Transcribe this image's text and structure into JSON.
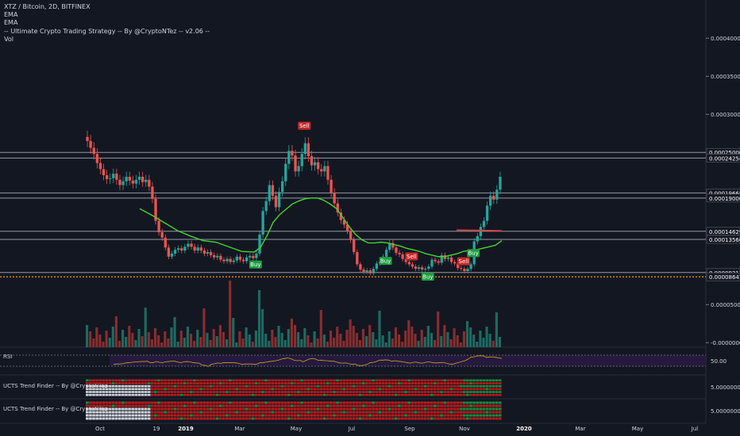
{
  "legend": {
    "symbol": "XTZ / Bitcoin, 2D, BITFINEX",
    "ema1": "EMA",
    "ema2": "EMA",
    "strategy": "-- Ultimate Crypto Trading Strategy -- By @CryptoNTez -- v2.06 --",
    "vol": "Vol"
  },
  "panes": {
    "rsi_title": "RSI",
    "trend1_title": "UCTS Trend Finder -- By @CryptoNTez",
    "trend2_title": "UCTS Trend Finder -- By @CryptoNTez"
  },
  "colors": {
    "background": "#131722",
    "up": "#26a69a",
    "down": "#ef5350",
    "ema": "#44d62c",
    "horizontal_lines": "#9598a1",
    "support_line": "#ff9800",
    "resistance_segment": "#e53935",
    "rsi_line": "#d4a21c",
    "rsi_band": "#2e1d4a",
    "trend_red": "#b71c1c",
    "trend_green": "#1b8a3a"
  },
  "chart_data": {
    "type": "candlestick",
    "title": "XTZ / Bitcoin, 2D, BITFINEX",
    "x_ticks": [
      "Oct",
      "19",
      "2019",
      "Mar",
      "May",
      "Jul",
      "Sep",
      "Nov",
      "2020",
      "Mar",
      "May",
      "Jul"
    ],
    "y_ticks": [
      "0.00040000",
      "0.00035000",
      "0.00030000",
      "0.00005000",
      "-0.00000000"
    ],
    "y_range": [
      -6e-06,
      0.000445
    ],
    "scale": "linear",
    "price_labels": [
      "0.00025000",
      "0.00024254",
      "0.00019668",
      "0.00019000",
      "0.00014629",
      "0.00013560",
      "0.00009211",
      "0.00008647"
    ],
    "horizontal_levels": [
      0.00025,
      0.00024254,
      0.00019668,
      0.00019,
      0.00014629,
      0.0001356,
      9.211e-05
    ],
    "support_level": 8.647e-05,
    "close_prices": [
      0.000265,
      0.000256,
      0.000248,
      0.000236,
      0.000228,
      0.00022,
      0.000215,
      0.000216,
      0.000222,
      0.000214,
      0.000207,
      0.000212,
      0.000218,
      0.000213,
      0.000209,
      0.000214,
      0.000218,
      0.000211,
      0.000214,
      0.000205,
      0.000189,
      0.00016,
      0.000145,
      0.000138,
      0.000125,
      0.000113,
      0.000117,
      0.000122,
      0.000124,
      0.000121,
      0.000126,
      0.00013,
      0.000126,
      0.000121,
      0.000125,
      0.000121,
      0.000117,
      0.000119,
      0.000115,
      0.000112,
      0.000114,
      0.000109,
      0.000107,
      0.00011,
      0.000106,
      0.000108,
      0.000113,
      0.000109,
      0.000107,
      0.000112,
      0.000114,
      0.000111,
      0.000117,
      0.000142,
      0.000173,
      0.000186,
      0.000207,
      0.000193,
      0.000178,
      0.000198,
      0.000212,
      0.000235,
      0.000252,
      0.000246,
      0.000225,
      0.000232,
      0.000248,
      0.000262,
      0.000245,
      0.000233,
      0.000237,
      0.000228,
      0.000225,
      0.000232,
      0.000214,
      0.000197,
      0.000183,
      0.000171,
      0.000161,
      0.000155,
      0.000147,
      0.000135,
      0.000119,
      0.000103,
      9.6e-05,
      9.3e-05,
      9.5e-05,
      9.1e-05,
      9.7e-05,
      0.000104,
      0.000106,
      0.000113,
      0.000122,
      0.000131,
      0.000125,
      0.000118,
      0.000116,
      0.00011,
      0.000106,
      0.000103,
      0.0001,
      9.7e-05,
      9.9e-05,
      9.6e-05,
      9.7e-05,
      0.0001,
      0.000109,
      0.000107,
      0.000105,
      0.000115,
      0.00011,
      0.000112,
      0.000106,
      0.000104,
      9.8e-05,
      9.7e-05,
      9.4e-05,
      9.7e-05,
      0.000103,
      0.000133,
      0.00014,
      0.000152,
      0.00016,
      0.00018,
      0.000193,
      0.000188,
      0.000201,
      0.000218
    ],
    "volume_max": 5.5e-05,
    "ema_slow_points": [
      [
        0.000175,
        0.000176
      ],
      [
        0.000191,
        0.000167
      ],
      [
        0.000207,
        0.000157
      ],
      [
        0.000223,
        0.000147
      ],
      [
        0.000239,
        0.00014
      ],
      [
        0.000255,
        0.000134
      ],
      [
        0.000271,
        0.000132
      ],
      [
        0.000287,
        0.000126
      ],
      [
        0.000303,
        0.00012
      ],
      [
        0.000319,
        0.000119
      ],
      [
        0.000327,
        0.000125
      ],
      [
        0.000335,
        0.00014
      ],
      [
        0.000343,
        0.000158
      ],
      [
        0.000351,
        0.000168
      ],
      [
        0.000359,
        0.000175
      ],
      [
        0.000367,
        0.000182
      ],
      [
        0.000375,
        0.000186
      ],
      [
        0.000383,
        0.000189
      ],
      [
        0.000391,
        0.00019
      ],
      [
        0.000399,
        0.00019
      ],
      [
        0.000407,
        0.000187
      ],
      [
        0.000415,
        0.000182
      ],
      [
        0.000423,
        0.000176
      ],
      [
        0.000431,
        0.000164
      ],
      [
        0.000439,
        0.000152
      ],
      [
        0.000447,
        0.000142
      ],
      [
        0.000455,
        0.000135
      ],
      [
        0.000463,
        0.000131
      ],
      [
        0.000471,
        0.000131
      ],
      [
        0.000479,
        0.000132
      ],
      [
        0.000487,
        0.000131
      ],
      [
        0.000495,
        0.000129
      ],
      [
        0.000503,
        0.000127
      ],
      [
        0.000511,
        0.000124
      ],
      [
        0.000519,
        0.000122
      ],
      [
        0.000527,
        0.00012
      ],
      [
        0.000535,
        0.000117
      ],
      [
        0.000543,
        0.000115
      ],
      [
        0.000551,
        0.000113
      ],
      [
        0.000559,
        0.000113
      ],
      [
        0.000567,
        0.000115
      ],
      [
        0.000575,
        0.000117
      ],
      [
        0.000583,
        0.00012
      ],
      [
        0.000591,
        0.000121
      ],
      [
        0.000599,
        0.000122
      ],
      [
        0.000607,
        0.000124
      ],
      [
        0.000615,
        0.000126
      ],
      [
        0.000623,
        0.000128
      ],
      [
        0.000631,
        0.000134
      ]
    ],
    "resistance_segment": [
      [
        0.000574,
        0.000148
      ],
      [
        0.000631,
        0.000147
      ]
    ],
    "signals": [
      {
        "label": "Buy",
        "bar": 52,
        "type": "buy"
      },
      {
        "label": "Sell",
        "bar": 67,
        "type": "sell"
      },
      {
        "label": "Buy",
        "bar": 92,
        "type": "buy"
      },
      {
        "label": "Sell",
        "bar": 100,
        "type": "sell"
      },
      {
        "label": "Buy",
        "bar": 105,
        "type": "buy"
      },
      {
        "label": "Sell",
        "bar": 116,
        "type": "sell"
      },
      {
        "label": "Buy",
        "bar": 119,
        "type": "buy"
      }
    ],
    "rsi": {
      "axis_label": "50.00",
      "upper": 70,
      "lower": 30,
      "values": [
        37,
        38,
        38,
        39,
        42,
        43,
        44,
        46,
        46,
        47,
        47,
        48,
        43,
        43,
        47,
        44,
        43,
        46,
        47,
        48,
        48,
        45,
        43,
        46,
        47,
        46,
        43,
        42,
        41,
        34,
        33,
        29,
        37,
        39,
        42,
        40,
        43,
        43,
        43,
        43,
        42,
        40,
        37,
        38,
        38,
        38,
        37,
        38,
        43,
        43,
        45,
        47,
        48,
        50,
        52,
        56,
        58,
        60,
        57,
        52,
        50,
        51,
        46,
        51,
        56,
        58,
        56,
        51,
        52,
        50,
        50,
        48,
        48,
        45,
        42,
        41,
        42,
        39,
        37,
        38,
        33,
        32,
        34,
        37,
        43,
        44,
        47,
        52,
        52,
        53,
        52,
        48,
        50,
        48,
        47,
        45,
        43,
        41,
        44,
        45,
        42,
        41,
        44,
        46,
        44,
        42,
        42,
        43,
        44,
        40,
        38,
        37,
        41,
        44,
        47,
        50,
        56,
        63,
        64,
        67,
        68,
        67,
        62,
        63,
        64,
        62,
        60,
        58
      ]
    },
    "trend_finder": {
      "axis_label": "5.00000000"
    }
  }
}
